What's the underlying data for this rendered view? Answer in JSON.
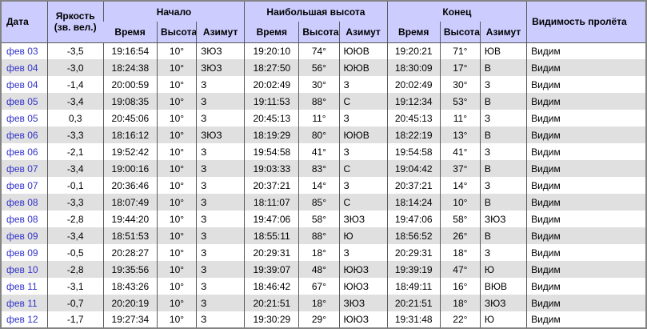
{
  "colors": {
    "header_bg": "#ccccff",
    "alt_row": "#e0e0e0",
    "link_blue": "#3333cc",
    "grid_line": "#5a5a5a",
    "outer_border": "#848484"
  },
  "table": {
    "header": {
      "date": "Дата",
      "brightness_line1": "Яркость",
      "brightness_line2": "(зв. вел.)",
      "groups": [
        "Начало",
        "Наибольшая высота",
        "Конец"
      ],
      "sub": [
        "Время",
        "Высота",
        "Азимут"
      ],
      "visibility": "Видимость пролёта"
    },
    "rows": [
      {
        "date": "фев 03",
        "mag": "-3,5",
        "start": {
          "time": "19:16:54",
          "alt": "10°",
          "az": "ЗЮЗ"
        },
        "max": {
          "time": "19:20:10",
          "alt": "74°",
          "az": "ЮЮВ"
        },
        "end": {
          "time": "19:20:21",
          "alt": "71°",
          "az": "ЮВ"
        },
        "vis": "Видим"
      },
      {
        "date": "фев 04",
        "mag": "-3,0",
        "start": {
          "time": "18:24:38",
          "alt": "10°",
          "az": "ЗЮЗ"
        },
        "max": {
          "time": "18:27:50",
          "alt": "56°",
          "az": "ЮЮВ"
        },
        "end": {
          "time": "18:30:09",
          "alt": "17°",
          "az": "В"
        },
        "vis": "Видим"
      },
      {
        "date": "фев 04",
        "mag": "-1,4",
        "start": {
          "time": "20:00:59",
          "alt": "10°",
          "az": "З"
        },
        "max": {
          "time": "20:02:49",
          "alt": "30°",
          "az": "З"
        },
        "end": {
          "time": "20:02:49",
          "alt": "30°",
          "az": "З"
        },
        "vis": "Видим"
      },
      {
        "date": "фев 05",
        "mag": "-3,4",
        "start": {
          "time": "19:08:35",
          "alt": "10°",
          "az": "З"
        },
        "max": {
          "time": "19:11:53",
          "alt": "88°",
          "az": "С"
        },
        "end": {
          "time": "19:12:34",
          "alt": "53°",
          "az": "В"
        },
        "vis": "Видим"
      },
      {
        "date": "фев 05",
        "mag": "0,3",
        "start": {
          "time": "20:45:06",
          "alt": "10°",
          "az": "З"
        },
        "max": {
          "time": "20:45:13",
          "alt": "11°",
          "az": "З"
        },
        "end": {
          "time": "20:45:13",
          "alt": "11°",
          "az": "З"
        },
        "vis": "Видим"
      },
      {
        "date": "фев 06",
        "mag": "-3,3",
        "start": {
          "time": "18:16:12",
          "alt": "10°",
          "az": "ЗЮЗ"
        },
        "max": {
          "time": "18:19:29",
          "alt": "80°",
          "az": "ЮЮВ"
        },
        "end": {
          "time": "18:22:19",
          "alt": "13°",
          "az": "В"
        },
        "vis": "Видим"
      },
      {
        "date": "фев 06",
        "mag": "-2,1",
        "start": {
          "time": "19:52:42",
          "alt": "10°",
          "az": "З"
        },
        "max": {
          "time": "19:54:58",
          "alt": "41°",
          "az": "З"
        },
        "end": {
          "time": "19:54:58",
          "alt": "41°",
          "az": "З"
        },
        "vis": "Видим"
      },
      {
        "date": "фев 07",
        "mag": "-3,4",
        "start": {
          "time": "19:00:16",
          "alt": "10°",
          "az": "З"
        },
        "max": {
          "time": "19:03:33",
          "alt": "83°",
          "az": "С"
        },
        "end": {
          "time": "19:04:42",
          "alt": "37°",
          "az": "В"
        },
        "vis": "Видим"
      },
      {
        "date": "фев 07",
        "mag": "-0,1",
        "start": {
          "time": "20:36:46",
          "alt": "10°",
          "az": "З"
        },
        "max": {
          "time": "20:37:21",
          "alt": "14°",
          "az": "З"
        },
        "end": {
          "time": "20:37:21",
          "alt": "14°",
          "az": "З"
        },
        "vis": "Видим"
      },
      {
        "date": "фев 08",
        "mag": "-3,3",
        "start": {
          "time": "18:07:49",
          "alt": "10°",
          "az": "З"
        },
        "max": {
          "time": "18:11:07",
          "alt": "85°",
          "az": "С"
        },
        "end": {
          "time": "18:14:24",
          "alt": "10°",
          "az": "В"
        },
        "vis": "Видим"
      },
      {
        "date": "фев 08",
        "mag": "-2,8",
        "start": {
          "time": "19:44:20",
          "alt": "10°",
          "az": "З"
        },
        "max": {
          "time": "19:47:06",
          "alt": "58°",
          "az": "ЗЮЗ"
        },
        "end": {
          "time": "19:47:06",
          "alt": "58°",
          "az": "ЗЮЗ"
        },
        "vis": "Видим"
      },
      {
        "date": "фев 09",
        "mag": "-3,4",
        "start": {
          "time": "18:51:53",
          "alt": "10°",
          "az": "З"
        },
        "max": {
          "time": "18:55:11",
          "alt": "88°",
          "az": "Ю"
        },
        "end": {
          "time": "18:56:52",
          "alt": "26°",
          "az": "В"
        },
        "vis": "Видим"
      },
      {
        "date": "фев 09",
        "mag": "-0,5",
        "start": {
          "time": "20:28:27",
          "alt": "10°",
          "az": "З"
        },
        "max": {
          "time": "20:29:31",
          "alt": "18°",
          "az": "З"
        },
        "end": {
          "time": "20:29:31",
          "alt": "18°",
          "az": "З"
        },
        "vis": "Видим"
      },
      {
        "date": "фев 10",
        "mag": "-2,8",
        "start": {
          "time": "19:35:56",
          "alt": "10°",
          "az": "З"
        },
        "max": {
          "time": "19:39:07",
          "alt": "48°",
          "az": "ЮЮЗ"
        },
        "end": {
          "time": "19:39:19",
          "alt": "47°",
          "az": "Ю"
        },
        "vis": "Видим"
      },
      {
        "date": "фев 11",
        "mag": "-3,1",
        "start": {
          "time": "18:43:26",
          "alt": "10°",
          "az": "З"
        },
        "max": {
          "time": "18:46:42",
          "alt": "67°",
          "az": "ЮЮЗ"
        },
        "end": {
          "time": "18:49:11",
          "alt": "16°",
          "az": "ВЮВ"
        },
        "vis": "Видим"
      },
      {
        "date": "фев 11",
        "mag": "-0,7",
        "start": {
          "time": "20:20:19",
          "alt": "10°",
          "az": "З"
        },
        "max": {
          "time": "20:21:51",
          "alt": "18°",
          "az": "ЗЮЗ"
        },
        "end": {
          "time": "20:21:51",
          "alt": "18°",
          "az": "ЗЮЗ"
        },
        "vis": "Видим"
      },
      {
        "date": "фев 12",
        "mag": "-1,7",
        "start": {
          "time": "19:27:34",
          "alt": "10°",
          "az": "З"
        },
        "max": {
          "time": "19:30:29",
          "alt": "29°",
          "az": "ЮЮЗ"
        },
        "end": {
          "time": "19:31:48",
          "alt": "22°",
          "az": "Ю"
        },
        "vis": "Видим"
      }
    ]
  }
}
